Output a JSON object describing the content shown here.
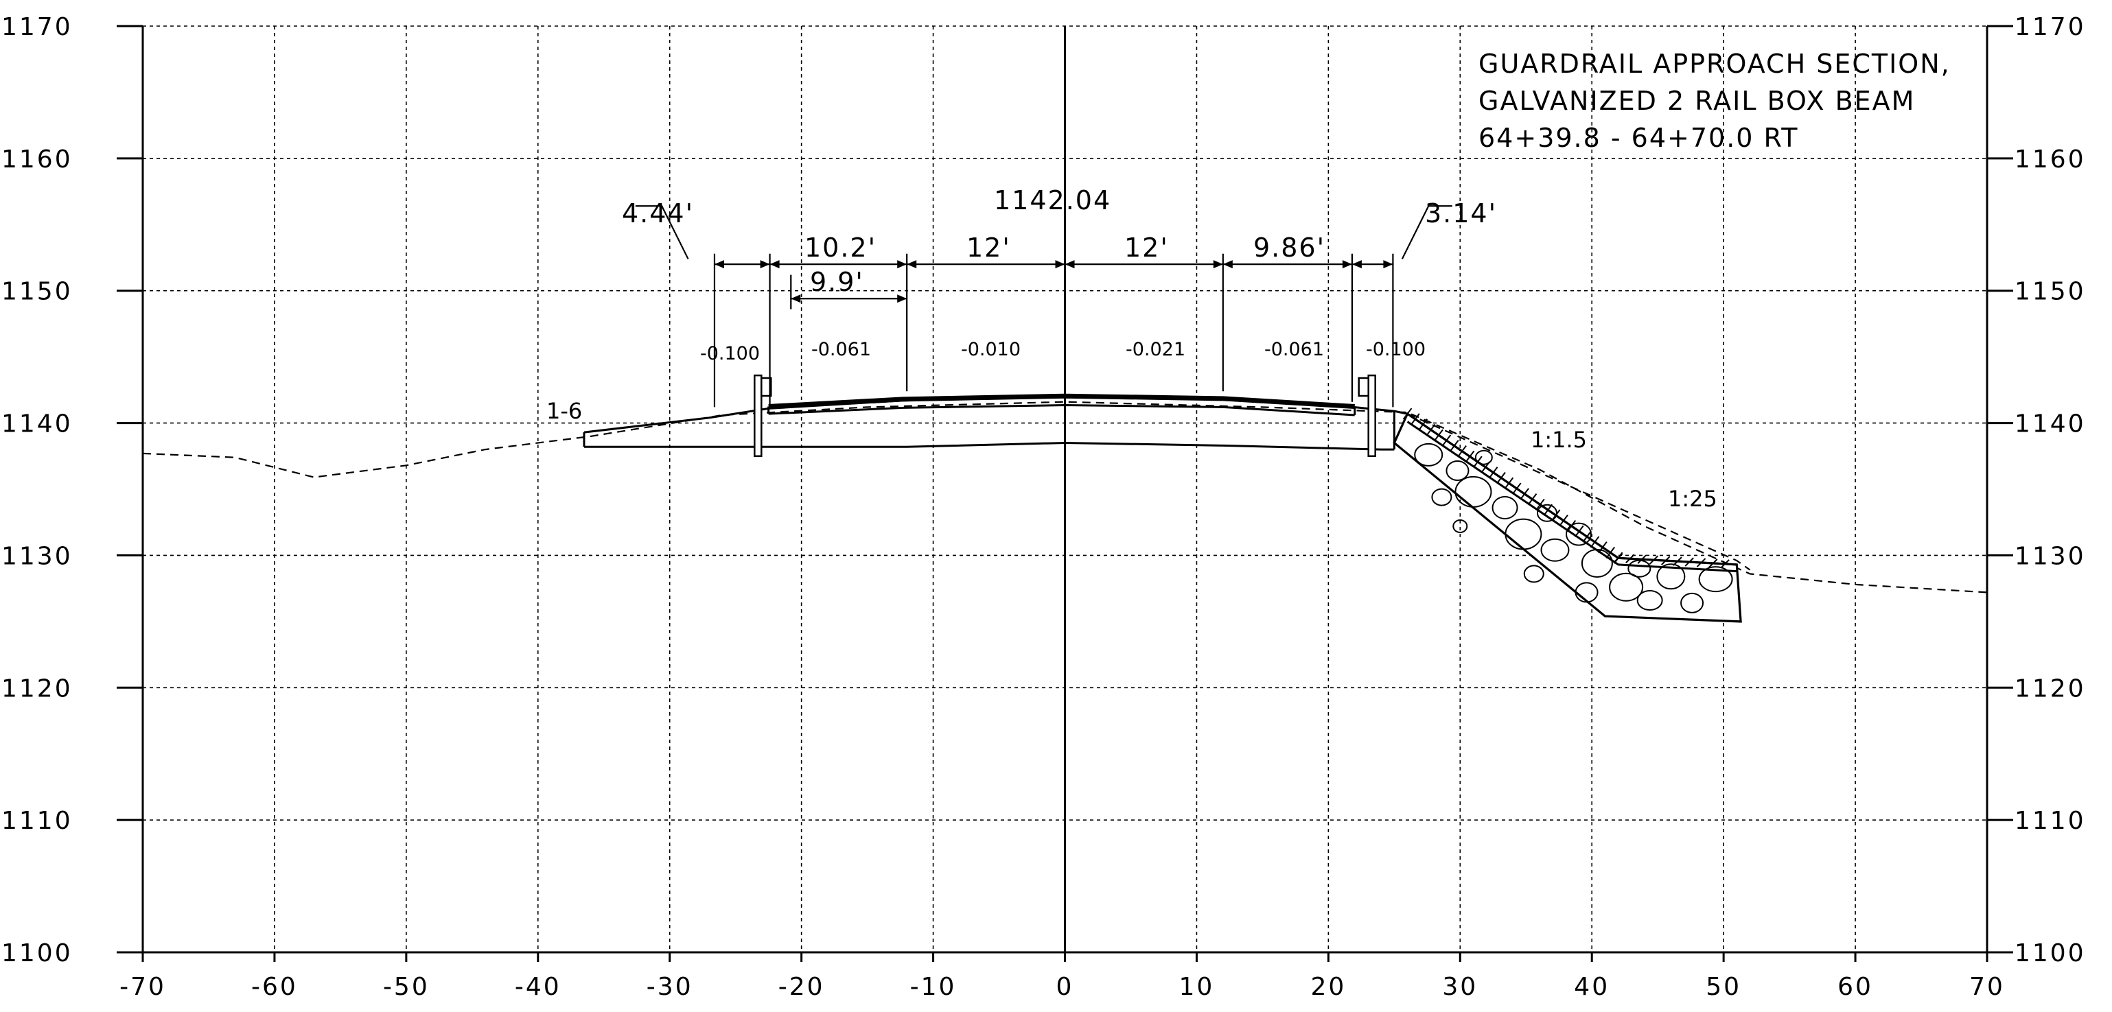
{
  "axes": {
    "x_ticks": [
      "-70",
      "-60",
      "-50",
      "-40",
      "-30",
      "-20",
      "-10",
      "0",
      "10",
      "20",
      "30",
      "40",
      "50",
      "60",
      "70"
    ],
    "y_ticks": [
      "1100",
      "1110",
      "1120",
      "1130",
      "1140",
      "1150",
      "1160",
      "1170"
    ]
  },
  "title": {
    "lines": [
      "GUARDRAIL APPROACH SECTION,",
      "GALVANIZED 2 RAIL BOX BEAM",
      "64+39.8 - 64+70.0 RT"
    ]
  },
  "centerline_elevation": "1142.04",
  "dimensions": {
    "left_outer": "4.44'",
    "left_shoulder": "10.2'",
    "left_inner": "9.9'",
    "left_lane": "12'",
    "right_lane": "12'",
    "right_shoulder": "9.86'",
    "right_outer": "3.14'"
  },
  "slopes": [
    "-0.100",
    "-0.061",
    "-0.010",
    "-0.021",
    "-0.061",
    "-0.100"
  ],
  "side_slope_labels": {
    "left": "1-6",
    "right_fill": "1:1.5",
    "right_ground": "1:25"
  },
  "cross_section": {
    "existing_ground": [
      [
        -70,
        1137.7
      ],
      [
        -63,
        1137.4
      ],
      [
        -57,
        1135.9
      ],
      [
        -50,
        1136.8
      ],
      [
        -44,
        1138.0
      ],
      [
        -36,
        1139.0
      ],
      [
        -26,
        1140.6
      ],
      [
        -15,
        1141.2
      ],
      [
        0,
        1141.6
      ],
      [
        15,
        1141.2
      ],
      [
        26,
        1140.8
      ],
      [
        36,
        1136.5
      ],
      [
        44,
        1132.2
      ],
      [
        52,
        1128.6
      ],
      [
        60,
        1127.8
      ],
      [
        70,
        1127.2
      ]
    ],
    "finished_grade": [
      [
        -36.5,
        1139.3
      ],
      [
        -27,
        1140.4
      ],
      [
        -22.5,
        1141.1
      ],
      [
        -12.3,
        1141.7
      ],
      [
        0,
        1142.04
      ],
      [
        12,
        1141.8
      ],
      [
        21.9,
        1141.2
      ],
      [
        25.0,
        1140.9
      ],
      [
        26.0,
        1140.7
      ],
      [
        42,
        1129.8
      ],
      [
        51,
        1129.3
      ]
    ],
    "subgrade": [
      [
        -36.5,
        1138.2
      ],
      [
        -12,
        1138.2
      ],
      [
        0,
        1138.5
      ],
      [
        12,
        1138.3
      ],
      [
        24,
        1138.0
      ],
      [
        25,
        1138.0
      ]
    ],
    "riprap": [
      [
        25,
        1138.5
      ],
      [
        26,
        1140.7
      ],
      [
        42,
        1129.8
      ],
      [
        51,
        1129.3
      ],
      [
        51.3,
        1125.0
      ],
      [
        41,
        1125.4
      ]
    ],
    "rail_posts": [
      -23.3,
      23.3
    ]
  }
}
